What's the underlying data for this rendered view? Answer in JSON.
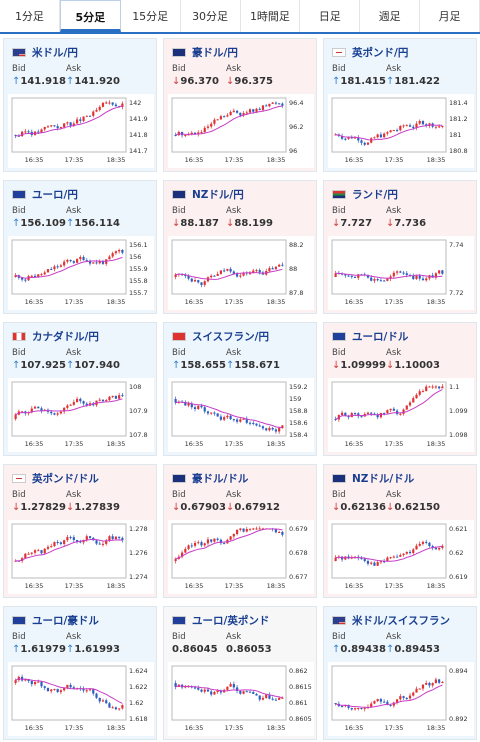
{
  "tabs": [
    "1分足",
    "5分足",
    "15分足",
    "30分足",
    "1時間足",
    "日足",
    "週足",
    "月足"
  ],
  "active_tab": "5分足",
  "labels": {
    "bid": "Bid",
    "ask": "Ask"
  },
  "colors": {
    "accent": "#2a6fc4",
    "up": "#2f7fd0",
    "down": "#d23c3c",
    "bull": "#e03232",
    "bear": "#2d5fc2",
    "ma": "#c83cc8"
  },
  "cards": [
    {
      "pair": "米ドル/円",
      "dir": "up",
      "bid": "141.918",
      "ask": "141.920",
      "flag": "us",
      "y_ticks": [
        "142",
        "141.9",
        "141.8",
        "141.7"
      ],
      "x_ticks": [
        "16:35",
        "17:35",
        "18:35"
      ]
    },
    {
      "pair": "豪ドル/円",
      "dir": "down",
      "bid": "96.370",
      "ask": "96.375",
      "flag": "au",
      "y_ticks": [
        "96.4",
        "96.2",
        "96"
      ],
      "x_ticks": [
        "16:35",
        "17:35",
        "18:35"
      ]
    },
    {
      "pair": "英ポンド/円",
      "dir": "up",
      "bid": "181.415",
      "ask": "181.422",
      "flag": "gb",
      "y_ticks": [
        "181.4",
        "181.2",
        "181",
        "180.8"
      ],
      "x_ticks": [
        "16:35",
        "17:35",
        "18:35"
      ]
    },
    {
      "pair": "ユーロ/円",
      "dir": "up",
      "bid": "156.109",
      "ask": "156.114",
      "flag": "eu",
      "y_ticks": [
        "156.1",
        "156",
        "155.9",
        "155.8",
        "155.7"
      ],
      "x_ticks": [
        "16:35",
        "17:35",
        "18:35"
      ]
    },
    {
      "pair": "NZドル/円",
      "dir": "down",
      "bid": "88.187",
      "ask": "88.199",
      "flag": "nz",
      "y_ticks": [
        "88.2",
        "88",
        "87.8"
      ],
      "x_ticks": [
        "16:35",
        "17:35",
        "18:35"
      ]
    },
    {
      "pair": "ランド/円",
      "dir": "down",
      "bid": "7.727",
      "ask": "7.736",
      "flag": "za",
      "y_ticks": [
        "7.74",
        "7.72"
      ],
      "x_ticks": [
        "16:35",
        "17:35",
        "18:35"
      ]
    },
    {
      "pair": "カナダドル/円",
      "dir": "up",
      "bid": "107.925",
      "ask": "107.940",
      "flag": "ca",
      "y_ticks": [
        "108",
        "107.9",
        "107.8"
      ],
      "x_ticks": [
        "16:35",
        "17:35",
        "18:35"
      ]
    },
    {
      "pair": "スイスフラン/円",
      "dir": "up",
      "bid": "158.655",
      "ask": "158.671",
      "flag": "ch",
      "y_ticks": [
        "159.2",
        "159",
        "158.8",
        "158.6",
        "158.4"
      ],
      "x_ticks": [
        "16:35",
        "17:35",
        "18:35"
      ]
    },
    {
      "pair": "ユーロ/ドル",
      "dir": "down",
      "bid": "1.09999",
      "ask": "1.10003",
      "flag": "eu",
      "y_ticks": [
        "1.1",
        "1.099",
        "1.098"
      ],
      "x_ticks": [
        "16:35",
        "17:35",
        "18:35"
      ]
    },
    {
      "pair": "英ポンド/ドル",
      "dir": "down",
      "bid": "1.27829",
      "ask": "1.27839",
      "flag": "gb",
      "y_ticks": [
        "1.278",
        "1.276",
        "1.274"
      ],
      "x_ticks": [
        "16:35",
        "17:35",
        "18:35"
      ]
    },
    {
      "pair": "豪ドル/ドル",
      "dir": "down",
      "bid": "0.67903",
      "ask": "0.67912",
      "flag": "au",
      "y_ticks": [
        "0.679",
        "0.678",
        "0.677"
      ],
      "x_ticks": [
        "16:35",
        "17:35",
        "18:35"
      ]
    },
    {
      "pair": "NZドル/ドル",
      "dir": "down",
      "bid": "0.62136",
      "ask": "0.62150",
      "flag": "nz",
      "y_ticks": [
        "0.621",
        "0.62",
        "0.619"
      ],
      "x_ticks": [
        "16:35",
        "17:35",
        "18:35"
      ]
    },
    {
      "pair": "ユーロ/豪ドル",
      "dir": "up",
      "bid": "1.61979",
      "ask": "1.61993",
      "flag": "eu",
      "y_ticks": [
        "1.624",
        "1.622",
        "1.62",
        "1.618"
      ],
      "x_ticks": [
        "16:35",
        "17:35",
        "18:35"
      ]
    },
    {
      "pair": "ユーロ/英ポンド",
      "dir": "flat",
      "bid": "0.86045",
      "ask": "0.86053",
      "flag": "eu",
      "y_ticks": [
        "0.862",
        "0.8615",
        "0.861",
        "0.8605"
      ],
      "x_ticks": [
        "16:35",
        "17:35",
        "18:35"
      ]
    },
    {
      "pair": "米ドル/スイスフラン",
      "dir": "up",
      "bid": "0.89438",
      "ask": "0.89453",
      "flag": "us",
      "y_ticks": [
        "0.894",
        "0.892"
      ],
      "x_ticks": [
        "16:35",
        "17:35",
        "18:35"
      ]
    }
  ],
  "chart_data": [
    {
      "type": "candlestick",
      "ma_trend": "up",
      "seed": 3
    },
    {
      "type": "candlestick",
      "ma_trend": "up",
      "seed": 5
    },
    {
      "type": "candlestick",
      "ma_trend": "up",
      "seed": 7
    },
    {
      "type": "candlestick",
      "ma_trend": "up",
      "seed": 11
    },
    {
      "type": "candlestick",
      "ma_trend": "up",
      "seed": 13
    },
    {
      "type": "candlestick",
      "ma_trend": "up",
      "seed": 17
    },
    {
      "type": "candlestick",
      "ma_trend": "up",
      "seed": 19
    },
    {
      "type": "candlestick",
      "ma_trend": "down",
      "seed": 23
    },
    {
      "type": "candlestick",
      "ma_trend": "up",
      "seed": 29
    },
    {
      "type": "candlestick",
      "ma_trend": "up",
      "seed": 31
    },
    {
      "type": "candlestick",
      "ma_trend": "up",
      "seed": 37
    },
    {
      "type": "candlestick",
      "ma_trend": "up",
      "seed": 41
    },
    {
      "type": "candlestick",
      "ma_trend": "down",
      "seed": 43
    },
    {
      "type": "candlestick",
      "ma_trend": "down",
      "seed": 47
    },
    {
      "type": "candlestick",
      "ma_trend": "up",
      "seed": 53
    }
  ]
}
